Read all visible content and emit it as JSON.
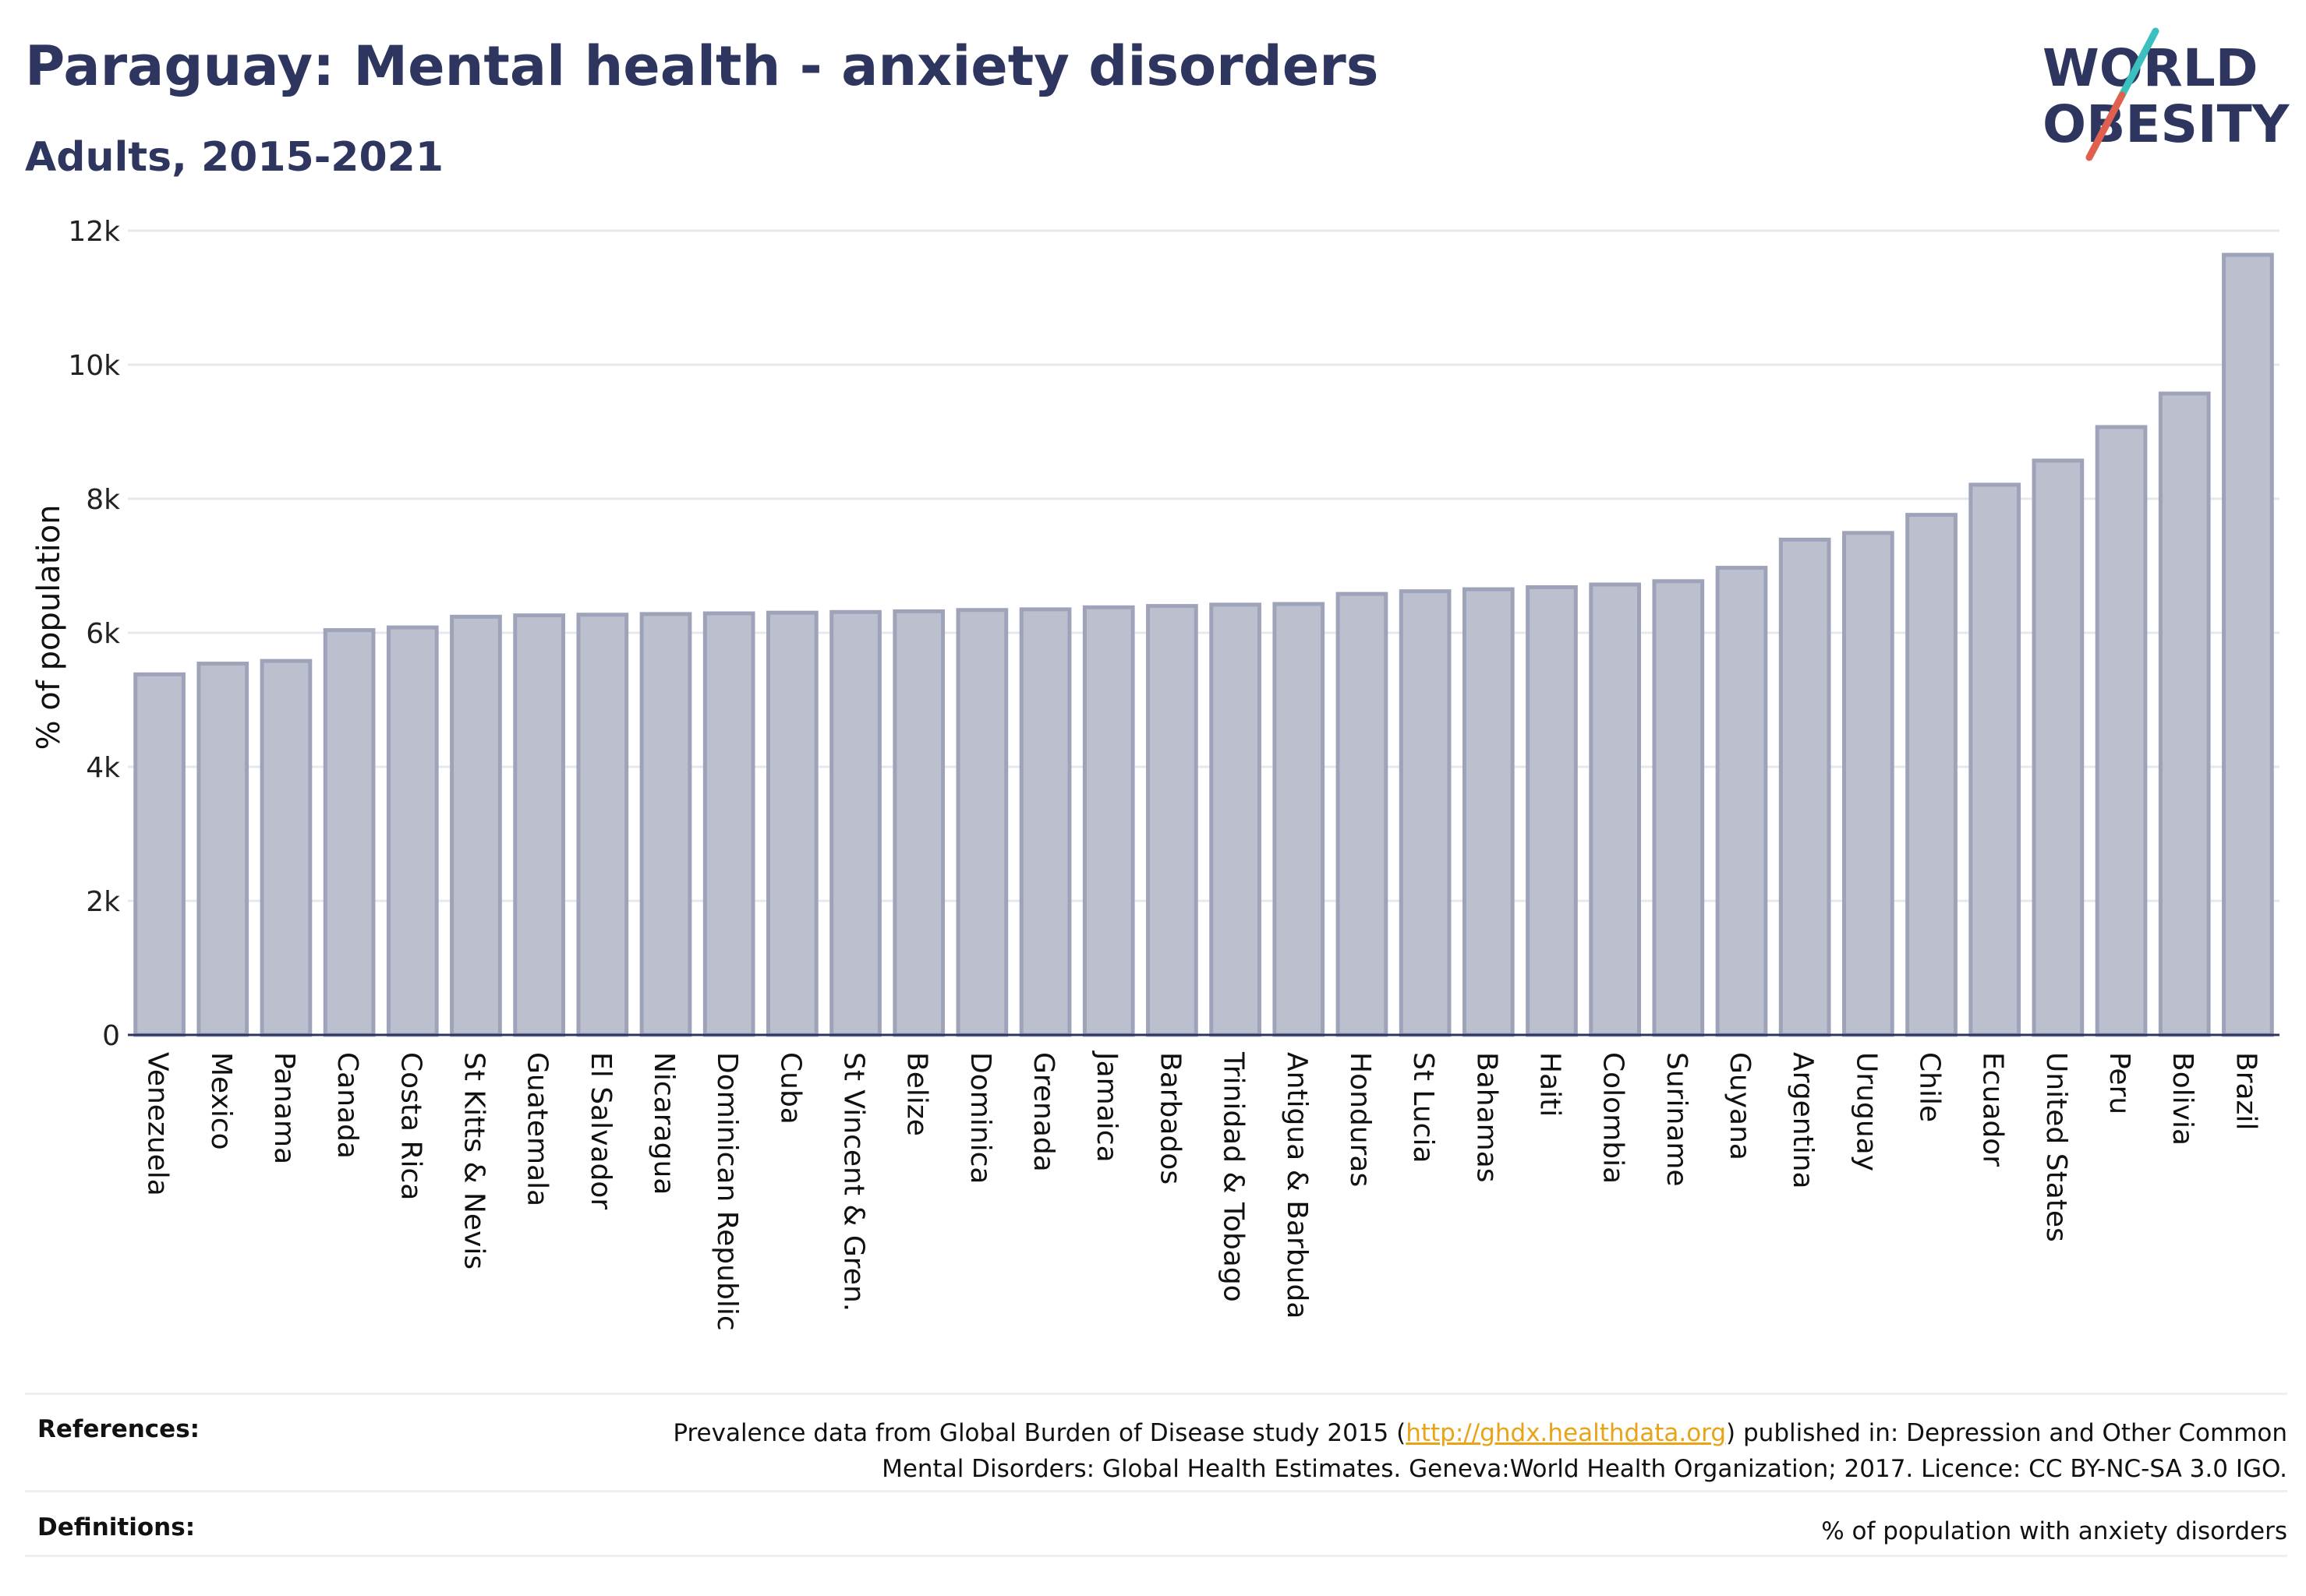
{
  "header": {
    "title": "Paraguay: Mental health - anxiety disorders",
    "subtitle": "Adults, 2015-2021"
  },
  "logo": {
    "line1": "WORLD",
    "line2": "OBESITY",
    "colors": {
      "text": "#2e3660",
      "slash_teal": "#3bbfbf",
      "slash_red": "#e0604f"
    }
  },
  "chart_data": {
    "type": "bar",
    "title": "Paraguay: Mental health - anxiety disorders",
    "subtitle": "Adults, 2015-2021",
    "xlabel": "",
    "ylabel": "% of population",
    "ylim": [
      0,
      12000
    ],
    "yticks": [
      0,
      2000,
      4000,
      6000,
      8000,
      10000,
      12000
    ],
    "ytick_labels": [
      "0",
      "2k",
      "4k",
      "6k",
      "8k",
      "10k",
      "12k"
    ],
    "grid": true,
    "bar_color": "#bcc0ce",
    "bar_edge_color": "#9ea3b9",
    "categories": [
      "Venezuela",
      "Mexico",
      "Panama",
      "Canada",
      "Costa Rica",
      "St Kitts & Nevis",
      "Guatemala",
      "El Salvador",
      "Nicaragua",
      "Dominican Republic",
      "Cuba",
      "St Vincent & Gren.",
      "Belize",
      "Dominica",
      "Grenada",
      "Jamaica",
      "Barbados",
      "Trinidad & Tobago",
      "Antigua & Barbuda",
      "Honduras",
      "St Lucia",
      "Bahamas",
      "Haiti",
      "Colombia",
      "Suriname",
      "Guyana",
      "Argentina",
      "Uruguay",
      "Chile",
      "Ecuador",
      "United States",
      "Peru",
      "Bolivia",
      "Brazil"
    ],
    "values": [
      5380,
      5540,
      5580,
      6040,
      6080,
      6240,
      6260,
      6270,
      6280,
      6290,
      6300,
      6310,
      6320,
      6340,
      6350,
      6380,
      6400,
      6420,
      6430,
      6580,
      6620,
      6650,
      6680,
      6720,
      6770,
      6970,
      7390,
      7490,
      7760,
      8210,
      8570,
      9070,
      9570,
      11640
    ]
  },
  "footer": {
    "references_label": "References:",
    "references_text_before": "Prevalence data from Global Burden of Disease study 2015 (",
    "references_link": "http://ghdx.healthdata.org",
    "references_text_after": ") published in: Depression and Other Common",
    "references_line2": "Mental Disorders: Global Health Estimates. Geneva:World Health Organization; 2017. Licence: CC BY-NC-SA 3.0 IGO.",
    "definitions_label": "Definitions:",
    "definitions_text": "% of population with anxiety disorders"
  }
}
